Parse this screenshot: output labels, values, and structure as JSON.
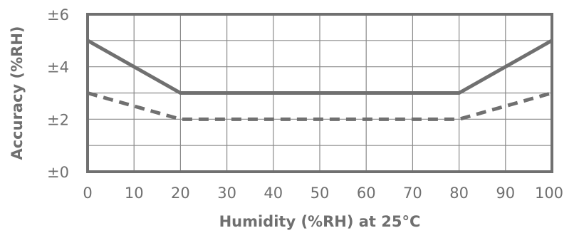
{
  "chart_data": {
    "type": "line",
    "title": "",
    "xlabel": "Humidity (%RH) at 25°C",
    "ylabel": "Accuracy (%RH)",
    "xlim": [
      0,
      100
    ],
    "ylim": [
      0,
      6
    ],
    "x_ticks": [
      0,
      10,
      20,
      30,
      40,
      50,
      60,
      70,
      80,
      90,
      100
    ],
    "x_tick_labels": [
      "0",
      "10",
      "20",
      "30",
      "40",
      "50",
      "60",
      "70",
      "80",
      "90",
      "100"
    ],
    "y_ticks": [
      0,
      2,
      4,
      6
    ],
    "y_tick_labels": [
      "±0",
      "±2",
      "±4",
      "±6"
    ],
    "grid": true,
    "legend": "none",
    "series": [
      {
        "style": "solid",
        "color": "#707070",
        "x": [
          0,
          20,
          80,
          100
        ],
        "y": [
          5,
          3,
          3,
          5
        ]
      },
      {
        "style": "dashed",
        "color": "#707070",
        "x": [
          0,
          20,
          80,
          100
        ],
        "y": [
          3,
          2,
          2,
          3
        ]
      }
    ]
  }
}
